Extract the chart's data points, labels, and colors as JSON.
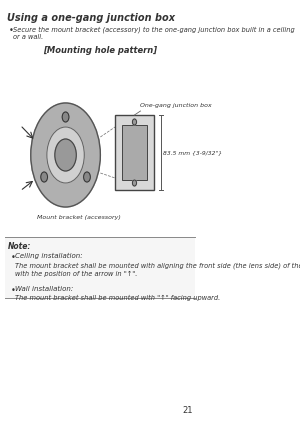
{
  "title": "Using a one-gang junction box",
  "bullet1": "Secure the mount bracket (accessory) to the one-gang junction box built in a ceiling or a wall.",
  "diagram_title": "[Mounting hole pattern]",
  "label_junction": "One-gang junction box",
  "label_mount": "Mount bracket (accessory)",
  "label_dim": "83.5 mm {3-9/32\"}",
  "note_title": "Note:",
  "note_bullet1_title": "Ceiling installation:",
  "note_bullet1_text": "The mount bracket shall be mounted with aligning the front side (the lens side) of the camera\nwith the position of the arrow in \"↑\".",
  "note_bullet2_title": "Wall installation:",
  "note_bullet2_text": "The mount bracket shall be mounted with \"↑\" facing upward.",
  "page_number": "21",
  "bg_color": "#ffffff",
  "text_color": "#333333",
  "line_color": "#555555"
}
